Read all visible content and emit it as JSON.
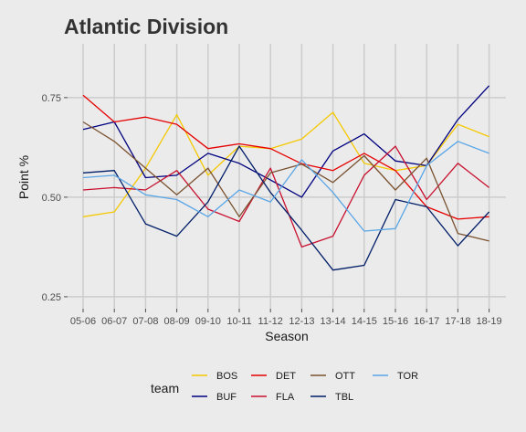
{
  "chart_data": {
    "type": "line",
    "title": "Atlantic  Division",
    "xlabel": "Season",
    "ylabel": "Point %",
    "categories": [
      "05-06",
      "06-07",
      "07-08",
      "08-09",
      "09-10",
      "10-11",
      "11-12",
      "12-13",
      "13-14",
      "14-15",
      "15-16",
      "16-17",
      "17-18",
      "18-19"
    ],
    "ylim": [
      0.22,
      0.885
    ],
    "yticks": [
      0.25,
      0.5,
      0.75
    ],
    "ytick_labels": [
      "0.25",
      "0.50",
      "0.75"
    ],
    "grid": true,
    "legend_position": "bottom",
    "legend_title": "team",
    "series": [
      {
        "name": "BOS",
        "color": "#f5c800",
        "values": [
          0.451,
          0.463,
          0.573,
          0.707,
          0.555,
          0.628,
          0.622,
          0.646,
          0.713,
          0.585,
          0.567,
          0.579,
          0.683,
          0.652
        ]
      },
      {
        "name": "BUF",
        "color": "#000080",
        "values": [
          0.67,
          0.689,
          0.549,
          0.555,
          0.61,
          0.585,
          0.543,
          0.5,
          0.616,
          0.659,
          0.591,
          0.579,
          0.695,
          0.78
        ]
      },
      {
        "name": "DET",
        "color": "#e60000",
        "values": [
          0.756,
          0.689,
          0.701,
          0.683,
          0.622,
          0.634,
          0.622,
          0.584,
          0.567,
          0.61,
          0.567,
          0.476,
          0.445,
          0.451
        ]
      },
      {
        "name": "FLA",
        "color": "#c8102e",
        "values": [
          0.518,
          0.524,
          0.518,
          0.567,
          0.47,
          0.439,
          0.573,
          0.375,
          0.402,
          0.555,
          0.628,
          0.494,
          0.585,
          0.524
        ]
      },
      {
        "name": "OTT",
        "color": "#7a5230",
        "values": [
          0.689,
          0.64,
          0.573,
          0.506,
          0.573,
          0.451,
          0.561,
          0.583,
          0.537,
          0.604,
          0.518,
          0.598,
          0.409,
          0.39
        ]
      },
      {
        "name": "TBL",
        "color": "#001d68",
        "values": [
          0.561,
          0.567,
          0.433,
          0.402,
          0.488,
          0.628,
          0.512,
          0.417,
          0.317,
          0.329,
          0.494,
          0.476,
          0.378,
          0.463
        ]
      },
      {
        "name": "TOR",
        "color": "#5aa6e6",
        "values": [
          0.549,
          0.555,
          0.506,
          0.494,
          0.451,
          0.518,
          0.488,
          0.594,
          0.512,
          0.415,
          0.421,
          0.579,
          0.64,
          0.61
        ]
      }
    ]
  }
}
